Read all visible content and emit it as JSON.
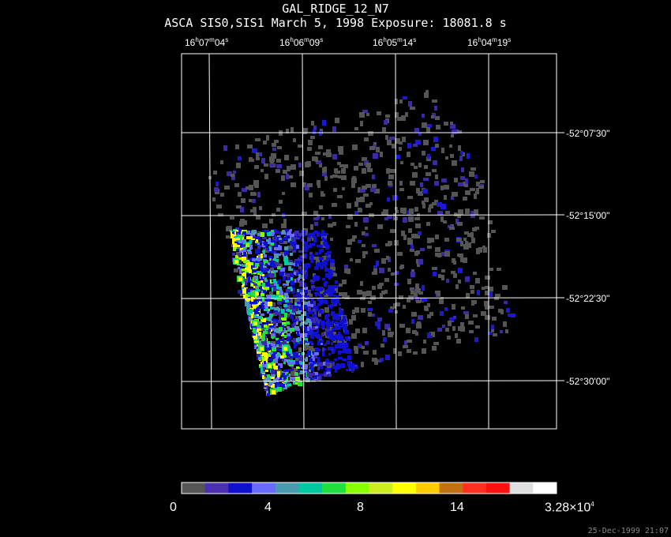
{
  "title": "GAL_RIDGE_12_N7",
  "subtitle": "ASCA SIS0,SIS1 March 5, 1998 Exposure: 18081.8 s",
  "ra_labels": [
    {
      "h": "16",
      "m": "07",
      "s": "04"
    },
    {
      "h": "16",
      "m": "06",
      "s": "09"
    },
    {
      "h": "16",
      "m": "05",
      "s": "14"
    },
    {
      "h": "16",
      "m": "04",
      "s": "19"
    }
  ],
  "dec_labels": [
    "-52°07'30\"",
    "-52°15'00\"",
    "-52°22'30\"",
    "-52°30'00\""
  ],
  "colorbar": {
    "labels": [
      "0",
      "4",
      "8",
      "14",
      "3.28×10"
    ],
    "max_exponent": "4",
    "colors": [
      "#555555",
      "#4a30b0",
      "#1010d0",
      "#6a6aff",
      "#4a9ab0",
      "#00c8a0",
      "#20e040",
      "#88ff00",
      "#ccee20",
      "#ffff00",
      "#ffcc00",
      "#c07010",
      "#ff3020",
      "#ff1010",
      "#e0e0e0",
      "#ffffff"
    ]
  },
  "timestamp": "25-Dec-1999 21:07"
}
